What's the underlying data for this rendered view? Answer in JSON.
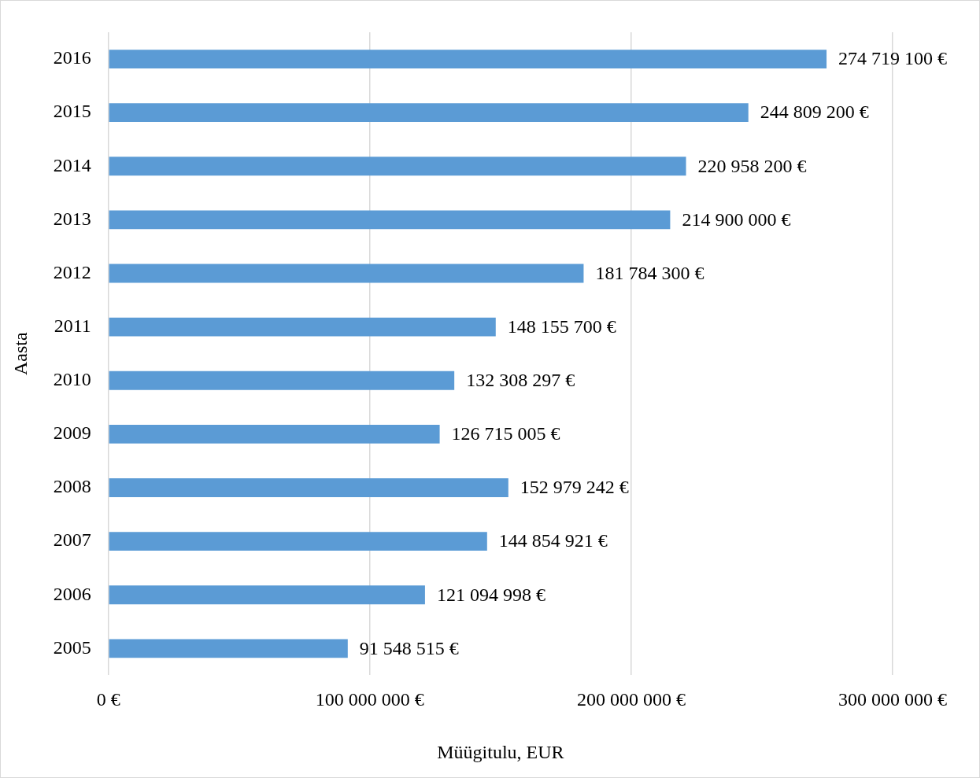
{
  "chart_data": {
    "type": "bar",
    "orientation": "horizontal",
    "xlabel": "Müügitulu, EUR",
    "ylabel": "Aasta",
    "categories": [
      "2016",
      "2015",
      "2014",
      "2013",
      "2012",
      "2011",
      "2010",
      "2009",
      "2008",
      "2007",
      "2006",
      "2005"
    ],
    "values": [
      274719100,
      244809200,
      220958200,
      214900000,
      181784300,
      148155700,
      132308297,
      126715005,
      152979242,
      144854921,
      121094998,
      91548515
    ],
    "value_labels": [
      "274 719 100 €",
      "244 809 200 €",
      "220 958 200 €",
      "214 900 000 €",
      "181 784 300 €",
      "148 155 700 €",
      "132 308 297 €",
      "126 715 005 €",
      "152 979 242 €",
      "144 854 921 €",
      "121 094 998 €",
      "91 548 515 €"
    ],
    "color": "#5b9bd5",
    "xlim": [
      0,
      300000000
    ],
    "xticks": [
      {
        "value": 0,
        "label": "0 €"
      },
      {
        "value": 100000000,
        "label": "100 000 000 €"
      },
      {
        "value": 200000000,
        "label": "200 000 000 €"
      },
      {
        "value": 300000000,
        "label": "300 000 000 €"
      }
    ],
    "grid": "x",
    "legend": false
  }
}
